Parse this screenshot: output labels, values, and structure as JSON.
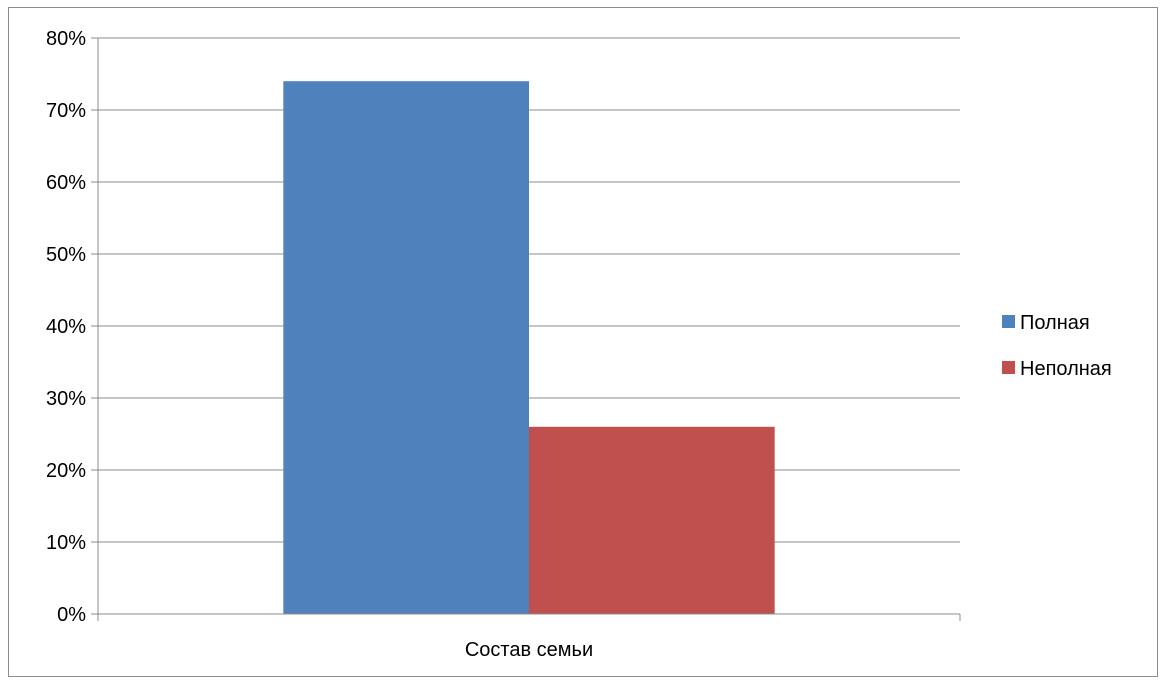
{
  "chart_data": {
    "type": "bar",
    "categories": [
      "Состав семьи"
    ],
    "series": [
      {
        "name": "Полная",
        "values": [
          0.74
        ],
        "color": "#4F81BD"
      },
      {
        "name": "Неполная",
        "values": [
          0.26
        ],
        "color": "#C0504D"
      }
    ],
    "ylim": [
      0,
      0.8
    ],
    "yticks": [
      0,
      0.1,
      0.2,
      0.3,
      0.4,
      0.5,
      0.6,
      0.7,
      0.8
    ],
    "ytick_labels": [
      "0%",
      "10%",
      "20%",
      "30%",
      "40%",
      "50%",
      "60%",
      "70%",
      "80%"
    ],
    "grid": true,
    "legend": "right",
    "title": "",
    "xlabel": "",
    "ylabel": ""
  }
}
